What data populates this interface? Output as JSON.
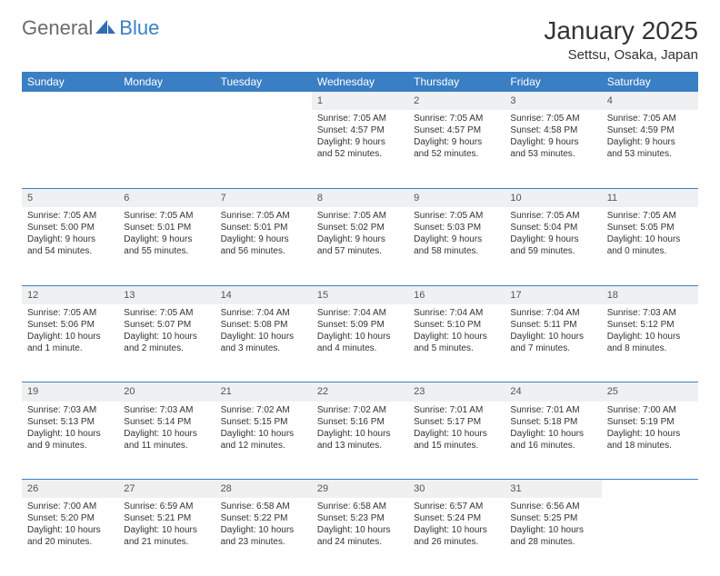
{
  "logo": {
    "part1": "General",
    "part2": "Blue"
  },
  "title": "January 2025",
  "location": "Settsu, Osaka, Japan",
  "colors": {
    "header_bg": "#3a7fc4",
    "header_text": "#ffffff",
    "daynum_bg": "#eef0f2",
    "border": "#3a7fc4",
    "body_text": "#333333",
    "logo_gray": "#6b6b6b",
    "logo_blue": "#3a7fc4"
  },
  "weekdays": [
    "Sunday",
    "Monday",
    "Tuesday",
    "Wednesday",
    "Thursday",
    "Friday",
    "Saturday"
  ],
  "weeks": [
    {
      "nums": [
        "",
        "",
        "",
        "1",
        "2",
        "3",
        "4"
      ],
      "cells": [
        null,
        null,
        null,
        {
          "sunrise": "Sunrise: 7:05 AM",
          "sunset": "Sunset: 4:57 PM",
          "daylight1": "Daylight: 9 hours",
          "daylight2": "and 52 minutes."
        },
        {
          "sunrise": "Sunrise: 7:05 AM",
          "sunset": "Sunset: 4:57 PM",
          "daylight1": "Daylight: 9 hours",
          "daylight2": "and 52 minutes."
        },
        {
          "sunrise": "Sunrise: 7:05 AM",
          "sunset": "Sunset: 4:58 PM",
          "daylight1": "Daylight: 9 hours",
          "daylight2": "and 53 minutes."
        },
        {
          "sunrise": "Sunrise: 7:05 AM",
          "sunset": "Sunset: 4:59 PM",
          "daylight1": "Daylight: 9 hours",
          "daylight2": "and 53 minutes."
        }
      ]
    },
    {
      "nums": [
        "5",
        "6",
        "7",
        "8",
        "9",
        "10",
        "11"
      ],
      "cells": [
        {
          "sunrise": "Sunrise: 7:05 AM",
          "sunset": "Sunset: 5:00 PM",
          "daylight1": "Daylight: 9 hours",
          "daylight2": "and 54 minutes."
        },
        {
          "sunrise": "Sunrise: 7:05 AM",
          "sunset": "Sunset: 5:01 PM",
          "daylight1": "Daylight: 9 hours",
          "daylight2": "and 55 minutes."
        },
        {
          "sunrise": "Sunrise: 7:05 AM",
          "sunset": "Sunset: 5:01 PM",
          "daylight1": "Daylight: 9 hours",
          "daylight2": "and 56 minutes."
        },
        {
          "sunrise": "Sunrise: 7:05 AM",
          "sunset": "Sunset: 5:02 PM",
          "daylight1": "Daylight: 9 hours",
          "daylight2": "and 57 minutes."
        },
        {
          "sunrise": "Sunrise: 7:05 AM",
          "sunset": "Sunset: 5:03 PM",
          "daylight1": "Daylight: 9 hours",
          "daylight2": "and 58 minutes."
        },
        {
          "sunrise": "Sunrise: 7:05 AM",
          "sunset": "Sunset: 5:04 PM",
          "daylight1": "Daylight: 9 hours",
          "daylight2": "and 59 minutes."
        },
        {
          "sunrise": "Sunrise: 7:05 AM",
          "sunset": "Sunset: 5:05 PM",
          "daylight1": "Daylight: 10 hours",
          "daylight2": "and 0 minutes."
        }
      ]
    },
    {
      "nums": [
        "12",
        "13",
        "14",
        "15",
        "16",
        "17",
        "18"
      ],
      "cells": [
        {
          "sunrise": "Sunrise: 7:05 AM",
          "sunset": "Sunset: 5:06 PM",
          "daylight1": "Daylight: 10 hours",
          "daylight2": "and 1 minute."
        },
        {
          "sunrise": "Sunrise: 7:05 AM",
          "sunset": "Sunset: 5:07 PM",
          "daylight1": "Daylight: 10 hours",
          "daylight2": "and 2 minutes."
        },
        {
          "sunrise": "Sunrise: 7:04 AM",
          "sunset": "Sunset: 5:08 PM",
          "daylight1": "Daylight: 10 hours",
          "daylight2": "and 3 minutes."
        },
        {
          "sunrise": "Sunrise: 7:04 AM",
          "sunset": "Sunset: 5:09 PM",
          "daylight1": "Daylight: 10 hours",
          "daylight2": "and 4 minutes."
        },
        {
          "sunrise": "Sunrise: 7:04 AM",
          "sunset": "Sunset: 5:10 PM",
          "daylight1": "Daylight: 10 hours",
          "daylight2": "and 5 minutes."
        },
        {
          "sunrise": "Sunrise: 7:04 AM",
          "sunset": "Sunset: 5:11 PM",
          "daylight1": "Daylight: 10 hours",
          "daylight2": "and 7 minutes."
        },
        {
          "sunrise": "Sunrise: 7:03 AM",
          "sunset": "Sunset: 5:12 PM",
          "daylight1": "Daylight: 10 hours",
          "daylight2": "and 8 minutes."
        }
      ]
    },
    {
      "nums": [
        "19",
        "20",
        "21",
        "22",
        "23",
        "24",
        "25"
      ],
      "cells": [
        {
          "sunrise": "Sunrise: 7:03 AM",
          "sunset": "Sunset: 5:13 PM",
          "daylight1": "Daylight: 10 hours",
          "daylight2": "and 9 minutes."
        },
        {
          "sunrise": "Sunrise: 7:03 AM",
          "sunset": "Sunset: 5:14 PM",
          "daylight1": "Daylight: 10 hours",
          "daylight2": "and 11 minutes."
        },
        {
          "sunrise": "Sunrise: 7:02 AM",
          "sunset": "Sunset: 5:15 PM",
          "daylight1": "Daylight: 10 hours",
          "daylight2": "and 12 minutes."
        },
        {
          "sunrise": "Sunrise: 7:02 AM",
          "sunset": "Sunset: 5:16 PM",
          "daylight1": "Daylight: 10 hours",
          "daylight2": "and 13 minutes."
        },
        {
          "sunrise": "Sunrise: 7:01 AM",
          "sunset": "Sunset: 5:17 PM",
          "daylight1": "Daylight: 10 hours",
          "daylight2": "and 15 minutes."
        },
        {
          "sunrise": "Sunrise: 7:01 AM",
          "sunset": "Sunset: 5:18 PM",
          "daylight1": "Daylight: 10 hours",
          "daylight2": "and 16 minutes."
        },
        {
          "sunrise": "Sunrise: 7:00 AM",
          "sunset": "Sunset: 5:19 PM",
          "daylight1": "Daylight: 10 hours",
          "daylight2": "and 18 minutes."
        }
      ]
    },
    {
      "nums": [
        "26",
        "27",
        "28",
        "29",
        "30",
        "31",
        ""
      ],
      "cells": [
        {
          "sunrise": "Sunrise: 7:00 AM",
          "sunset": "Sunset: 5:20 PM",
          "daylight1": "Daylight: 10 hours",
          "daylight2": "and 20 minutes."
        },
        {
          "sunrise": "Sunrise: 6:59 AM",
          "sunset": "Sunset: 5:21 PM",
          "daylight1": "Daylight: 10 hours",
          "daylight2": "and 21 minutes."
        },
        {
          "sunrise": "Sunrise: 6:58 AM",
          "sunset": "Sunset: 5:22 PM",
          "daylight1": "Daylight: 10 hours",
          "daylight2": "and 23 minutes."
        },
        {
          "sunrise": "Sunrise: 6:58 AM",
          "sunset": "Sunset: 5:23 PM",
          "daylight1": "Daylight: 10 hours",
          "daylight2": "and 24 minutes."
        },
        {
          "sunrise": "Sunrise: 6:57 AM",
          "sunset": "Sunset: 5:24 PM",
          "daylight1": "Daylight: 10 hours",
          "daylight2": "and 26 minutes."
        },
        {
          "sunrise": "Sunrise: 6:56 AM",
          "sunset": "Sunset: 5:25 PM",
          "daylight1": "Daylight: 10 hours",
          "daylight2": "and 28 minutes."
        },
        null
      ]
    }
  ]
}
